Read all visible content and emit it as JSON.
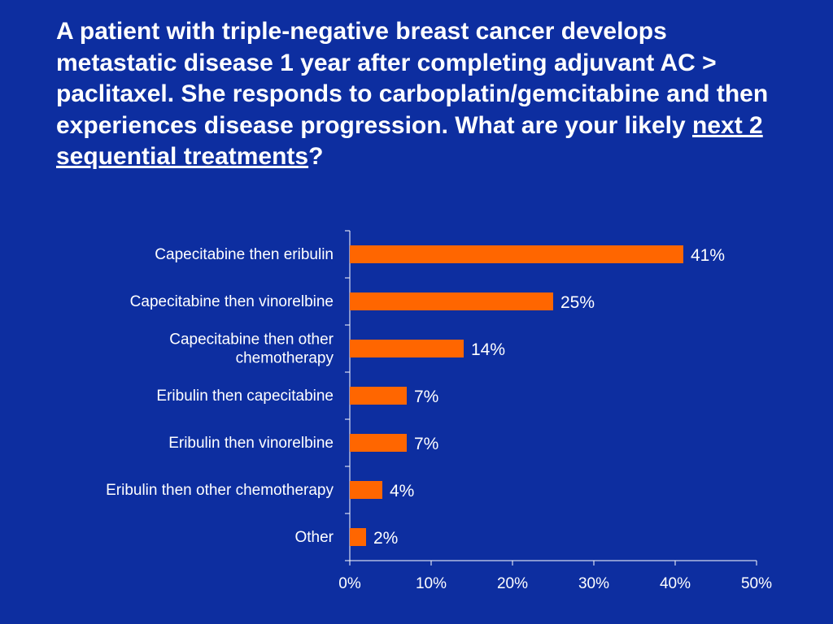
{
  "title": {
    "text_main": "A patient with triple-negative breast cancer develops metastatic disease 1 year after completing adjuvant AC > paclitaxel. She responds to carboplatin/gemcitabine and then experiences disease progression. What are your likely ",
    "text_underlined": "next 2 sequential treatments",
    "text_end": "?"
  },
  "colors": {
    "background": "#0d2ea0",
    "bar": "#ff6600",
    "text": "#ffffff"
  },
  "chart_data": {
    "type": "bar",
    "orientation": "horizontal",
    "categories": [
      [
        "Capecitabine then eribulin"
      ],
      [
        "Capecitabine then vinorelbine"
      ],
      [
        "Capecitabine then other",
        "chemotherapy"
      ],
      [
        "Eribulin then capecitabine"
      ],
      [
        "Eribulin then vinorelbine"
      ],
      [
        "Eribulin then other chemotherapy"
      ],
      [
        "Other"
      ]
    ],
    "values": [
      41,
      25,
      14,
      7,
      7,
      4,
      2
    ],
    "value_labels": [
      "41%",
      "25%",
      "14%",
      "7%",
      "7%",
      "4%",
      "2%"
    ],
    "xlim": [
      0,
      50
    ],
    "xticks": [
      0,
      10,
      20,
      30,
      40,
      50
    ],
    "xtick_labels": [
      "0%",
      "10%",
      "20%",
      "30%",
      "40%",
      "50%"
    ],
    "grid": false,
    "legend": "none"
  }
}
